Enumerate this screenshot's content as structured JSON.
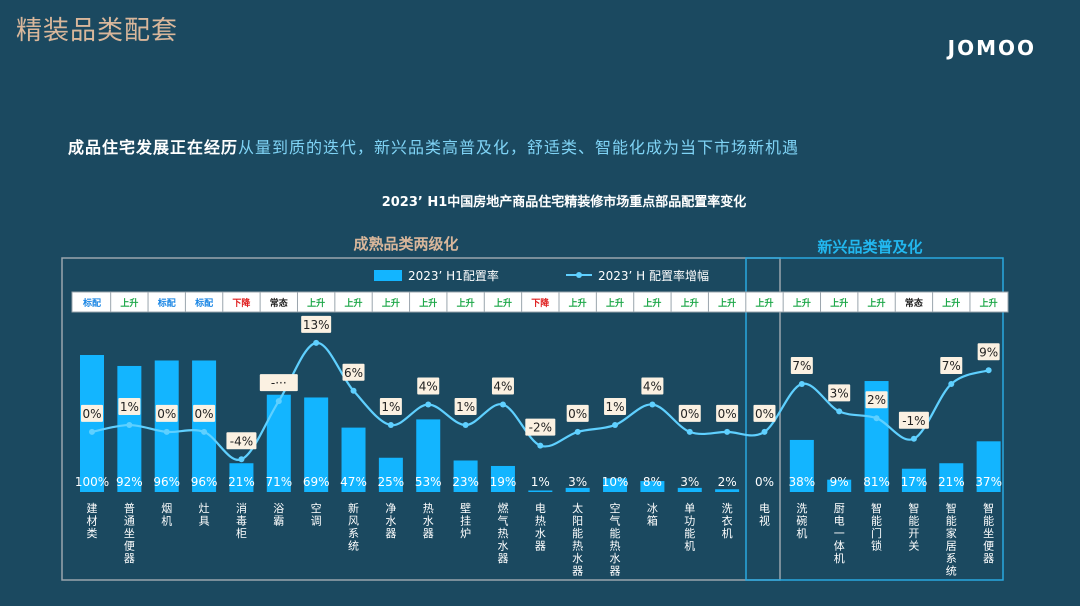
{
  "page": {
    "title": "精装品类配套",
    "logo": "JOMOO",
    "subtitle_highlight": "成品住宅发展正在经历",
    "subtitle_rest": "从量到质的迭代，新兴品类高普及化，舒适类、智能化成为当下市场新机遇"
  },
  "chart_data": {
    "type": "bar",
    "title": "2023’ H1中国房地产商品住宅精装修市场重点部品配置率变化",
    "group_mature_label": "成熟品类两级化",
    "group_emerging_label": "新兴品类普及化",
    "categories": [
      "建材类",
      "普通坐便器",
      "烟机",
      "灶具",
      "消毒柜",
      "浴霸",
      "空调",
      "新风系统",
      "净水器",
      "热水器",
      "壁挂炉",
      "燃气热水器",
      "电热水器",
      "太阳能热水器",
      "空气能热水器",
      "冰箱",
      "单功能机",
      "洗衣机",
      "电视",
      "洗碗机",
      "厨电一体机",
      "智能门锁",
      "智能开关",
      "智能家居系统",
      "智能坐便器"
    ],
    "status": [
      "标配",
      "上升",
      "标配",
      "标配",
      "下降",
      "常态",
      "上升",
      "上升",
      "上升",
      "上升",
      "上升",
      "上升",
      "下降",
      "上升",
      "上升",
      "上升",
      "上升",
      "上升",
      "上升",
      "上升",
      "上升",
      "上升",
      "常态",
      "上升",
      "上升"
    ],
    "status_colors": {
      "标配": "#1e88e5",
      "上升": "#1fa84a",
      "下降": "#e02020",
      "常态": "#222222"
    },
    "series": [
      {
        "name": "2023’ H1配置率",
        "kind": "bar",
        "color": "#13b5ff",
        "values": [
          100,
          92,
          96,
          96,
          21,
          71,
          69,
          47,
          25,
          53,
          23,
          19,
          1,
          3,
          10,
          8,
          3,
          2,
          0,
          38,
          9,
          81,
          17,
          21,
          37
        ],
        "labels": [
          "100%",
          "92%",
          "96%",
          "96%",
          "21%",
          "71%",
          "69%",
          "47%",
          "25%",
          "53%",
          "23%",
          "19%",
          "1%",
          "3%",
          "10%",
          "8%",
          "3%",
          "2%",
          "0%",
          "38%",
          "9%",
          "81%",
          "17%",
          "21%",
          "37%"
        ]
      },
      {
        "name": "2023’ H 配置率增幅",
        "kind": "line",
        "color": "#5fd0ff",
        "values": [
          0,
          1,
          0,
          0,
          -4,
          null,
          13,
          6,
          1,
          4,
          1,
          4,
          -2,
          0,
          1,
          4,
          0,
          0,
          0,
          7,
          3,
          2,
          -1,
          7,
          9
        ],
        "labels": [
          "0%",
          "1%",
          "0%",
          "0%",
          "-4%",
          "-···",
          "13%",
          "6%",
          "1%",
          "4%",
          "1%",
          "4%",
          "-2%",
          "0%",
          "1%",
          "4%",
          "0%",
          "0%",
          "0%",
          "7%",
          "3%",
          "2%",
          "-1%",
          "7%",
          "9%"
        ]
      }
    ],
    "ylim": [
      0,
      100
    ],
    "growth_ylim": [
      -6,
      14
    ],
    "legend_position": "top-center",
    "grid": false
  }
}
